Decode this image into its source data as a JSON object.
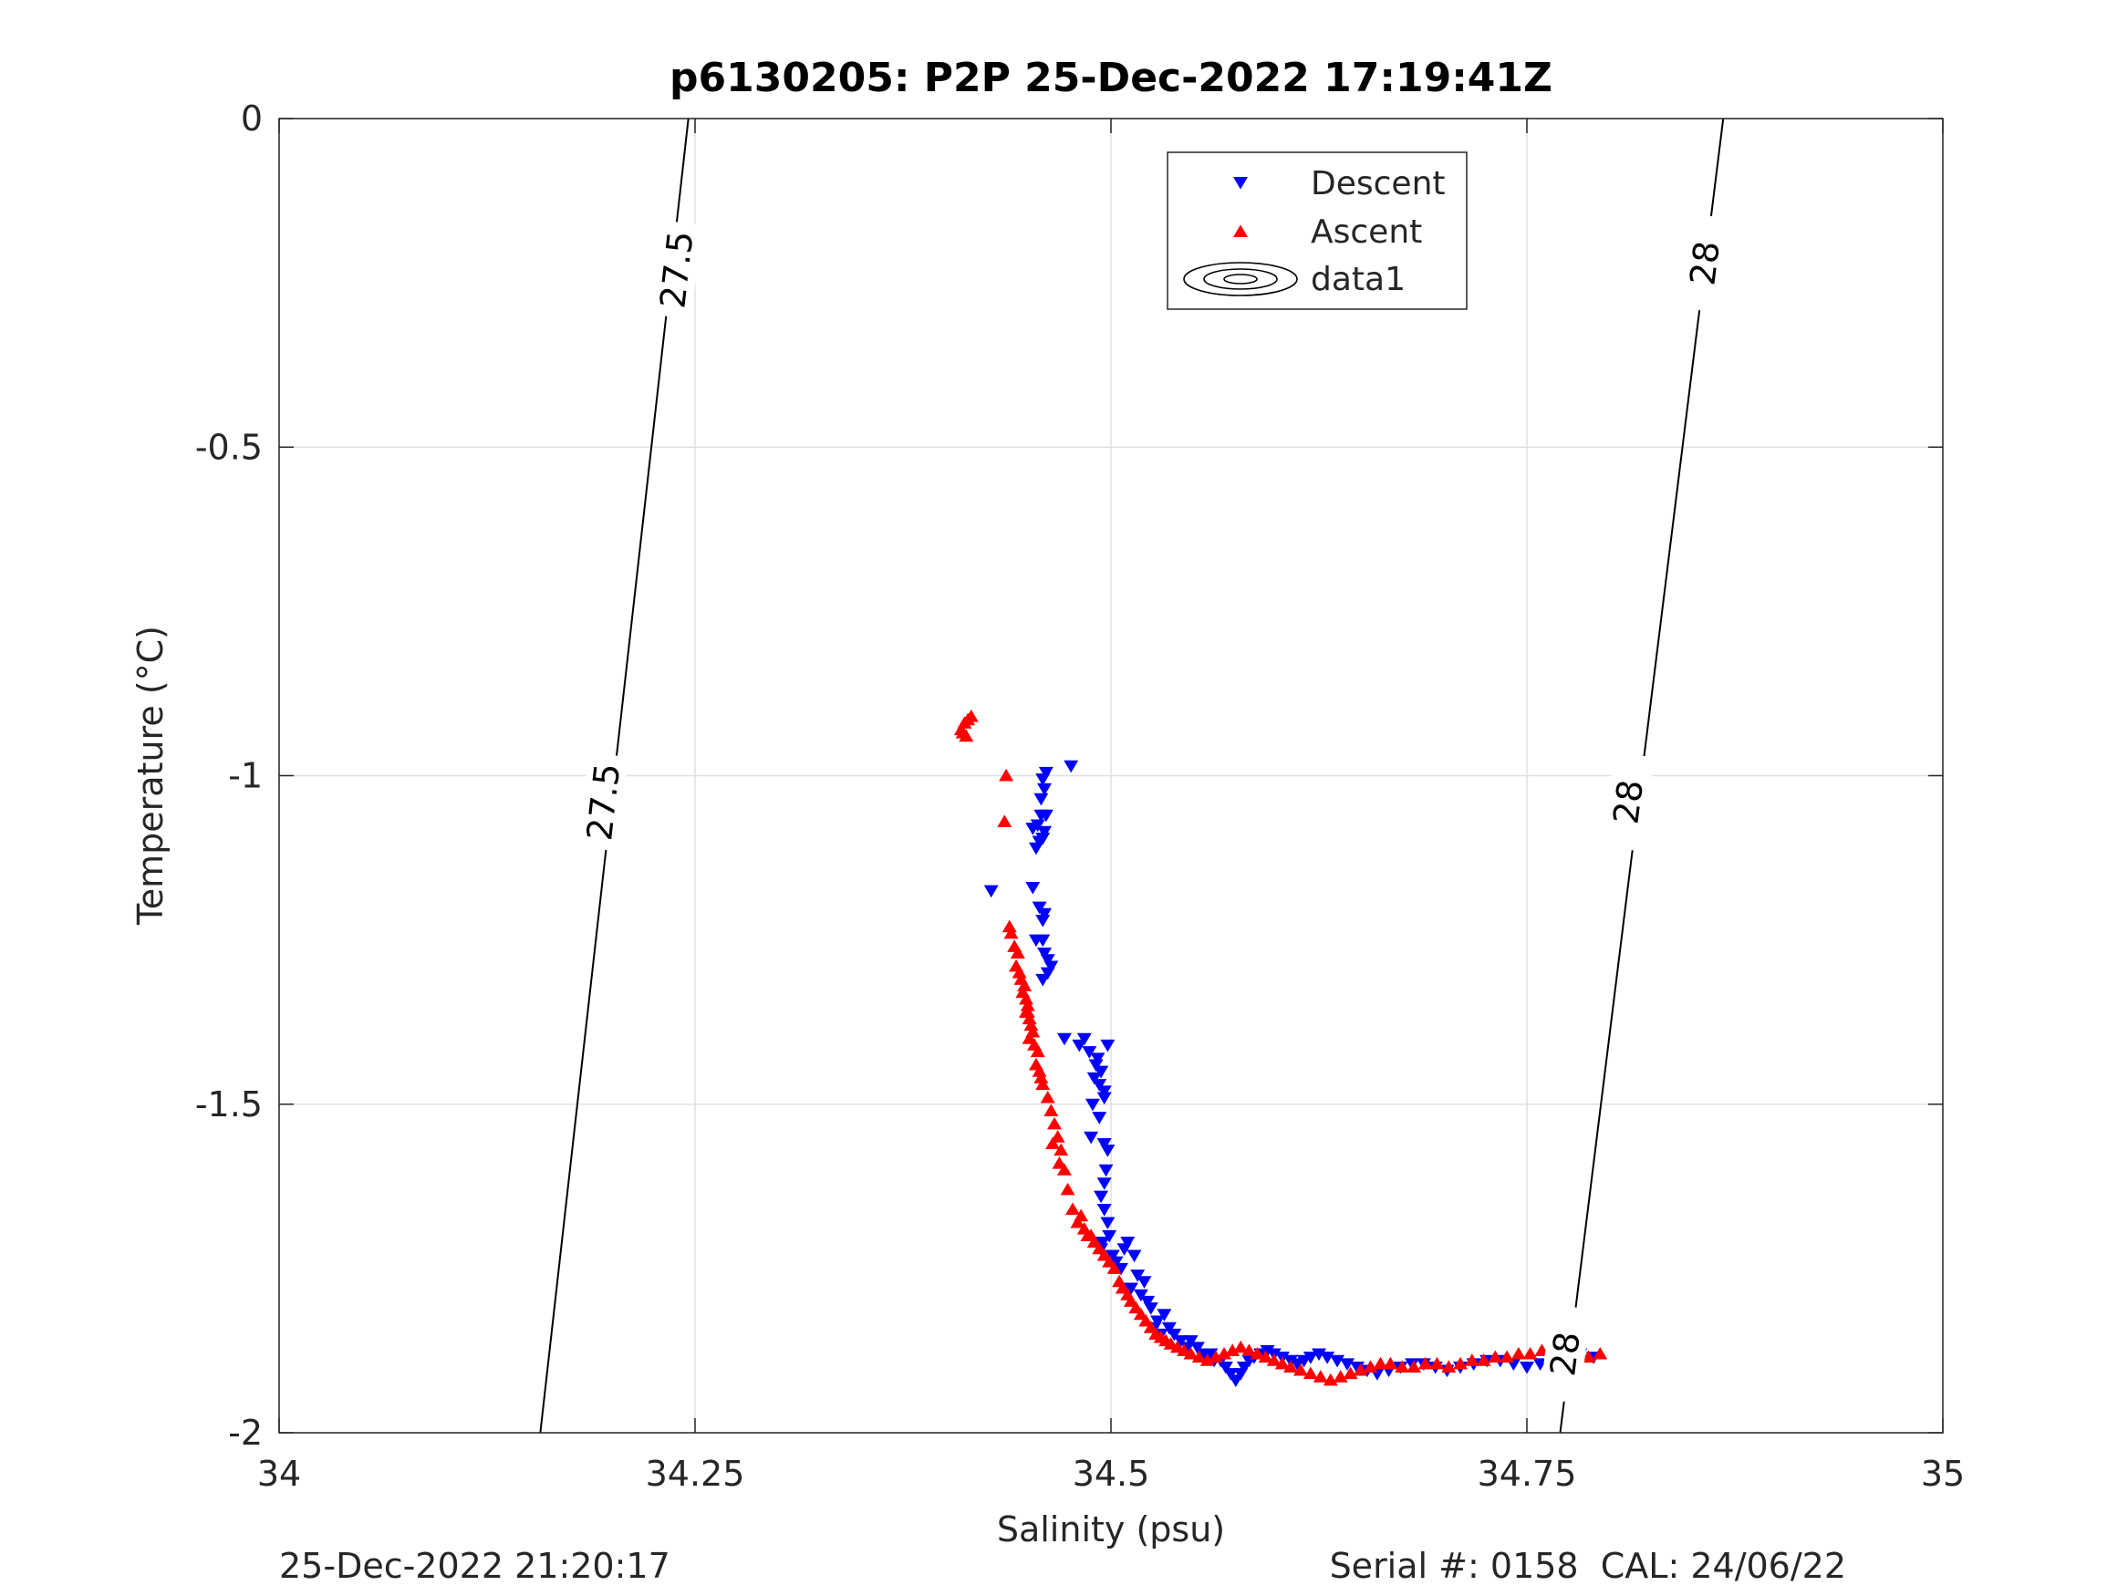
{
  "chart_data": {
    "type": "scatter",
    "title": "p6130205: P2P 25-Dec-2022 17:19:41Z",
    "xlabel": "Salinity (psu)",
    "ylabel": "Temperature (°C)",
    "xlim": [
      34,
      35
    ],
    "ylim": [
      -2,
      0
    ],
    "xticks": [
      34,
      34.25,
      34.5,
      34.75,
      35
    ],
    "xtick_labels": [
      "34",
      "34.25",
      "34.5",
      "34.75",
      "35"
    ],
    "yticks": [
      -2,
      -1.5,
      -1,
      -0.5,
      0
    ],
    "ytick_labels": [
      "-2",
      "-1.5",
      "-1",
      "-0.5",
      "0"
    ],
    "grid": true,
    "legend": {
      "position": "top-center",
      "entries": [
        {
          "label": "Descent",
          "marker": "triangle-down",
          "color": "#0000ff"
        },
        {
          "label": "Ascent",
          "marker": "triangle-up",
          "color": "#ff0000"
        },
        {
          "label": "data1",
          "marker": "contour",
          "color": "#000000"
        }
      ]
    },
    "series": [
      {
        "name": "Descent",
        "marker": "triangle-down",
        "color": "#0000ff",
        "x": [
          34.476,
          34.461,
          34.459,
          34.46,
          34.458,
          34.461,
          34.456,
          34.453,
          34.46,
          34.459,
          34.457,
          34.455,
          34.458,
          34.428,
          34.453,
          34.457,
          34.46,
          34.459,
          34.459,
          34.46,
          34.455,
          34.462,
          34.464,
          34.462,
          34.459,
          34.472,
          34.481,
          34.484,
          34.487,
          34.491,
          34.494,
          34.49,
          34.493,
          34.496,
          34.492,
          34.498,
          34.494,
          34.496,
          34.489,
          34.493,
          34.488,
          34.496,
          34.498,
          34.497,
          34.496,
          34.494,
          34.496,
          34.498,
          34.499,
          34.495,
          34.494,
          34.501,
          34.503,
          34.506,
          34.508,
          34.51,
          34.514,
          34.516,
          34.52,
          34.512,
          34.518,
          34.522,
          34.524,
          34.528,
          34.53,
          34.526,
          34.532,
          34.535,
          34.538,
          34.542,
          34.546,
          34.548,
          34.552,
          34.556,
          34.56,
          34.562,
          34.566,
          34.569,
          34.572,
          34.575,
          34.578,
          34.58,
          34.583,
          34.586,
          34.59,
          34.594,
          34.598,
          34.603,
          34.608,
          34.612,
          34.616,
          34.62,
          34.625,
          34.63,
          34.636,
          34.642,
          34.648,
          34.654,
          34.66,
          34.667,
          34.674,
          34.681,
          34.688,
          34.695,
          34.702,
          34.71,
          34.718,
          34.726,
          34.734,
          34.742,
          34.75,
          34.758,
          34.766,
          34.774,
          34.782,
          34.79
        ],
        "y": [
          -0.985,
          -0.995,
          -1.005,
          -1.02,
          -1.035,
          -1.06,
          -1.075,
          -1.08,
          -1.085,
          -1.095,
          -1.1,
          -1.11,
          -1.06,
          -1.175,
          -1.17,
          -1.2,
          -1.21,
          -1.22,
          -1.25,
          -1.27,
          -1.25,
          -1.28,
          -1.29,
          -1.3,
          -1.31,
          -1.4,
          -1.41,
          -1.4,
          -1.42,
          -1.44,
          -1.45,
          -1.46,
          -1.47,
          -1.49,
          -1.43,
          -1.41,
          -1.45,
          -1.48,
          -1.5,
          -1.52,
          -1.55,
          -1.56,
          -1.57,
          -1.6,
          -1.62,
          -1.64,
          -1.66,
          -1.68,
          -1.7,
          -1.71,
          -1.72,
          -1.73,
          -1.74,
          -1.75,
          -1.72,
          -1.71,
          -1.73,
          -1.76,
          -1.77,
          -1.78,
          -1.79,
          -1.8,
          -1.81,
          -1.83,
          -1.85,
          -1.84,
          -1.82,
          -1.84,
          -1.85,
          -1.86,
          -1.87,
          -1.86,
          -1.87,
          -1.88,
          -1.88,
          -1.89,
          -1.89,
          -1.9,
          -1.91,
          -1.92,
          -1.91,
          -1.9,
          -1.89,
          -1.885,
          -1.88,
          -1.875,
          -1.88,
          -1.885,
          -1.89,
          -1.895,
          -1.89,
          -1.885,
          -1.88,
          -1.885,
          -1.89,
          -1.895,
          -1.9,
          -1.905,
          -1.91,
          -1.905,
          -1.9,
          -1.895,
          -1.895,
          -1.9,
          -1.905,
          -1.9,
          -1.895,
          -1.89,
          -1.89,
          -1.895,
          -1.9,
          -1.895,
          -1.89,
          -1.885,
          -1.88,
          -1.885
        ]
      },
      {
        "name": "Ascent",
        "marker": "triangle-up",
        "color": "#ff0000",
        "x": [
          34.41,
          34.412,
          34.414,
          34.416,
          34.411,
          34.413,
          34.437,
          34.436,
          34.439,
          34.44,
          34.442,
          34.444,
          34.443,
          34.445,
          34.446,
          34.448,
          34.447,
          34.449,
          34.45,
          34.449,
          34.451,
          34.452,
          34.453,
          34.45,
          34.451,
          34.454,
          34.456,
          34.455,
          34.457,
          34.458,
          34.459,
          34.462,
          34.464,
          34.466,
          34.468,
          34.47,
          34.465,
          34.469,
          34.472,
          34.474,
          34.477,
          34.48,
          34.484,
          34.486,
          34.482,
          34.488,
          34.49,
          34.493,
          34.496,
          34.499,
          34.502,
          34.505,
          34.507,
          34.51,
          34.512,
          34.515,
          34.518,
          34.521,
          34.524,
          34.527,
          34.53,
          34.533,
          34.536,
          34.54,
          34.544,
          34.548,
          34.553,
          34.558,
          34.563,
          34.568,
          34.573,
          34.578,
          34.583,
          34.588,
          34.593,
          34.598,
          34.603,
          34.608,
          34.614,
          34.62,
          34.626,
          34.632,
          34.638,
          34.644,
          34.65,
          34.656,
          34.662,
          34.668,
          34.675,
          34.682,
          34.689,
          34.696,
          34.703,
          34.71,
          34.717,
          34.724,
          34.731,
          34.738,
          34.745,
          34.752,
          34.759,
          34.766,
          34.773,
          34.78,
          34.787,
          34.794
        ],
        "y": [
          -0.93,
          -0.92,
          -0.915,
          -0.91,
          -0.935,
          -0.94,
          -1.0,
          -1.07,
          -1.23,
          -1.24,
          -1.26,
          -1.27,
          -1.29,
          -1.3,
          -1.31,
          -1.32,
          -1.33,
          -1.34,
          -1.35,
          -1.36,
          -1.37,
          -1.38,
          -1.39,
          -1.36,
          -1.4,
          -1.41,
          -1.42,
          -1.44,
          -1.45,
          -1.46,
          -1.47,
          -1.49,
          -1.51,
          -1.53,
          -1.55,
          -1.57,
          -1.56,
          -1.59,
          -1.6,
          -1.63,
          -1.66,
          -1.68,
          -1.69,
          -1.7,
          -1.67,
          -1.7,
          -1.71,
          -1.72,
          -1.73,
          -1.74,
          -1.75,
          -1.77,
          -1.78,
          -1.79,
          -1.8,
          -1.81,
          -1.82,
          -1.83,
          -1.84,
          -1.85,
          -1.855,
          -1.86,
          -1.865,
          -1.87,
          -1.875,
          -1.88,
          -1.885,
          -1.89,
          -1.885,
          -1.88,
          -1.875,
          -1.87,
          -1.875,
          -1.88,
          -1.885,
          -1.89,
          -1.895,
          -1.9,
          -1.905,
          -1.91,
          -1.915,
          -1.92,
          -1.915,
          -1.91,
          -1.905,
          -1.9,
          -1.895,
          -1.895,
          -1.9,
          -1.9,
          -1.895,
          -1.895,
          -1.9,
          -1.895,
          -1.89,
          -1.89,
          -1.885,
          -1.885,
          -1.88,
          -1.88,
          -1.875,
          -1.875,
          -1.88,
          -1.88,
          -1.885,
          -1.88
        ]
      }
    ],
    "contours": [
      {
        "level": "27.5",
        "line": [
          [
            34.157,
            -2.0
          ],
          [
            34.246,
            0.0
          ]
        ],
        "label_positions": [
          [
            34.239,
            -0.23
          ],
          [
            34.195,
            -1.04
          ]
        ]
      },
      {
        "level": "28",
        "line": [
          [
            34.77,
            -2.0
          ],
          [
            34.868,
            0.0
          ]
        ],
        "label_positions": [
          [
            34.857,
            -0.22
          ],
          [
            34.811,
            -1.04
          ],
          [
            34.773,
            -1.88
          ]
        ]
      }
    ]
  },
  "footer": {
    "timestamp": "25-Dec-2022 21:20:17",
    "serial": "Serial #: 0158  CAL: 24/06/22"
  }
}
